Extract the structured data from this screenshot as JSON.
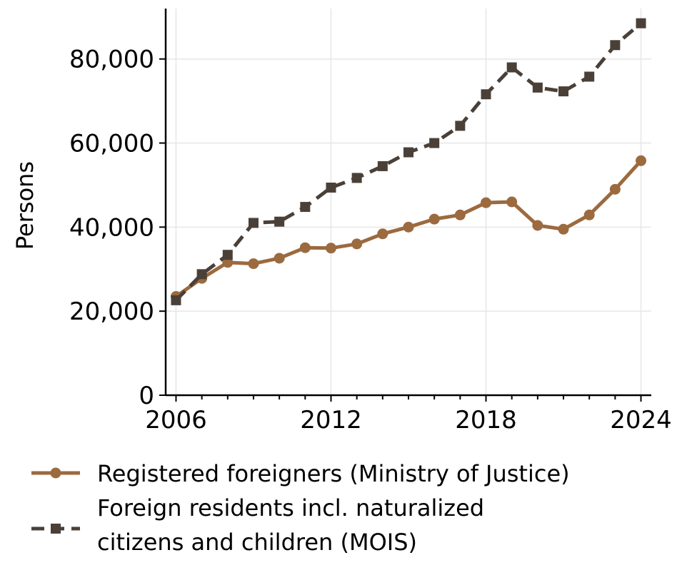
{
  "chart_data": {
    "type": "line",
    "title": "",
    "xlabel": "",
    "ylabel": "Persons",
    "xlim": [
      2005.6,
      2024.4
    ],
    "ylim": [
      0,
      92000
    ],
    "xticks": [
      2006,
      2012,
      2018,
      2024
    ],
    "xtick_labels": [
      "2006",
      "2012",
      "2018",
      "2024"
    ],
    "yticks": [
      0,
      20000,
      40000,
      60000,
      80000
    ],
    "ytick_labels": [
      "0",
      "20,000",
      "40,000",
      "60,000",
      "80,000"
    ],
    "grid": true,
    "legend_position": "bottom",
    "x": [
      2006,
      2007,
      2008,
      2009,
      2010,
      2011,
      2012,
      2013,
      2014,
      2015,
      2016,
      2017,
      2018,
      2019,
      2020,
      2021,
      2022,
      2023,
      2024
    ],
    "series": [
      {
        "name": "Registered foreigners (Ministry of Justice)",
        "color": "#9c6a3f",
        "marker": "circle",
        "dash": "solid",
        "values": [
          23500,
          27800,
          31600,
          31300,
          32600,
          35100,
          35000,
          36000,
          38400,
          40000,
          41900,
          42900,
          45800,
          46000,
          40400,
          39500,
          42900,
          49000,
          55800
        ]
      },
      {
        "name_lines": [
          "Foreign residents incl. naturalized",
          "citizens and children (MOIS)"
        ],
        "color": "#4a4038",
        "marker": "square",
        "dash": "dashed",
        "values": [
          22600,
          28800,
          33400,
          41000,
          41300,
          44800,
          49400,
          51700,
          54500,
          57800,
          60000,
          64100,
          71600,
          78000,
          73200,
          72300,
          75800,
          83300,
          88500
        ]
      }
    ]
  }
}
